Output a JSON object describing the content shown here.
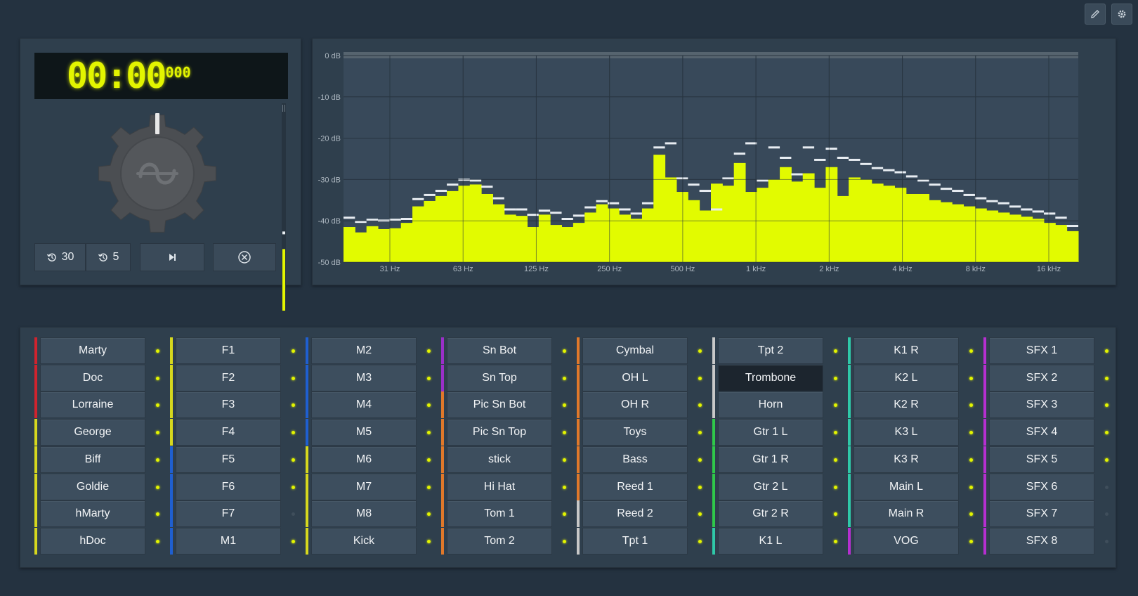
{
  "toolbar": {
    "edit_icon": "pencil-icon",
    "settings_icon": "gear-icon"
  },
  "colors": {
    "accent": "#e3f500",
    "background": "#243240",
    "panel": "#2f3f4d",
    "button": "#3d4e5e"
  },
  "transport": {
    "time_main": "00:00",
    "time_fraction": "000",
    "meter_level": 0.45,
    "buttons": [
      {
        "icon": "rewind-clock-icon",
        "label": "30"
      },
      {
        "icon": "rewind-clock-icon",
        "label": "5"
      },
      {
        "icon": "play-next-icon",
        "label": ""
      },
      {
        "icon": "stop-circle-x-icon",
        "label": ""
      }
    ]
  },
  "chart_data": {
    "type": "bar",
    "title": "",
    "ylabel": "",
    "xlabel": "",
    "ylim": [
      -50,
      0
    ],
    "y_ticks": [
      "0 dB",
      "-10 dB",
      "-20 dB",
      "-30 dB",
      "-40 dB",
      "-50 dB"
    ],
    "x_ticks": [
      "31 Hz",
      "63 Hz",
      "125 Hz",
      "250 Hz",
      "500 Hz",
      "1 kHz",
      "2 kHz",
      "4 kHz",
      "8 kHz",
      "16 kHz"
    ],
    "x_scale": "log",
    "values": [
      -41.5,
      -42.8,
      -41.3,
      -42.0,
      -41.8,
      -40.5,
      -36.5,
      -35.2,
      -34.0,
      -32.8,
      -31.5,
      -31.2,
      -33.5,
      -36.0,
      -38.5,
      -38.8,
      -41.5,
      -38.5,
      -41.0,
      -41.5,
      -40.5,
      -38.0,
      -36.0,
      -37.0,
      -38.5,
      -39.5,
      -37.0,
      -24.0,
      -29.5,
      -33.0,
      -35.0,
      -37.5,
      -31.0,
      -31.5,
      -26.0,
      -33.0,
      -32.0,
      -30.0,
      -27.0,
      -30.5,
      -28.5,
      -32.0,
      -27.0,
      -34.0,
      -29.5,
      -30.0,
      -31.0,
      -31.5,
      -32.0,
      -33.5,
      -33.5,
      -35.0,
      -35.5,
      -36.0,
      -36.5,
      -37.0,
      -37.5,
      -38.0,
      -38.5,
      -39.0,
      -39.5,
      -40.5,
      -41.0,
      -42.5
    ],
    "peaks": [
      -39.5,
      -40.5,
      -40.0,
      -40.2,
      -40.0,
      -39.8,
      -35.0,
      -34.0,
      -33.0,
      -31.5,
      -30.3,
      -30.5,
      -32.0,
      -34.8,
      -37.5,
      -37.5,
      -38.8,
      -37.8,
      -38.3,
      -39.8,
      -39.0,
      -37.0,
      -35.5,
      -36.0,
      -37.5,
      -38.5,
      -36.0,
      -22.5,
      -21.5,
      -30.0,
      -31.5,
      -33.0,
      -37.5,
      -30.0,
      -24.0,
      -21.5,
      -30.5,
      -22.5,
      -25.0,
      -29.0,
      -22.5,
      -25.5,
      -22.8,
      -25.0,
      -25.5,
      -26.5,
      -27.5,
      -28.0,
      -28.5,
      -29.5,
      -30.5,
      -31.5,
      -32.5,
      -33.0,
      -34.0,
      -34.8,
      -35.5,
      -36.0,
      -36.8,
      -37.5,
      -38.0,
      -38.5,
      -39.5,
      -41.5
    ]
  },
  "channel_columns": [
    {
      "items": [
        {
          "label": "Marty",
          "color": "#d0232e",
          "active": true
        },
        {
          "label": "Doc",
          "color": "#d0232e",
          "active": true
        },
        {
          "label": "Lorraine",
          "color": "#d0232e",
          "active": true
        },
        {
          "label": "George",
          "color": "#d6d81e",
          "active": true
        },
        {
          "label": "Biff",
          "color": "#d6d81e",
          "active": true
        },
        {
          "label": "Goldie",
          "color": "#d6d81e",
          "active": true
        },
        {
          "label": "hMarty",
          "color": "#d6d81e",
          "active": true
        },
        {
          "label": "hDoc",
          "color": "#d6d81e",
          "active": true
        }
      ]
    },
    {
      "items": [
        {
          "label": "F1",
          "color": "#d6d81e",
          "active": true
        },
        {
          "label": "F2",
          "color": "#d6d81e",
          "active": true
        },
        {
          "label": "F3",
          "color": "#d6d81e",
          "active": true
        },
        {
          "label": "F4",
          "color": "#d6d81e",
          "active": true
        },
        {
          "label": "F5",
          "color": "#1f5fd0",
          "active": true
        },
        {
          "label": "F6",
          "color": "#1f5fd0",
          "active": true
        },
        {
          "label": "F7",
          "color": "#1f5fd0",
          "active": false
        },
        {
          "label": "M1",
          "color": "#1f5fd0",
          "active": true
        }
      ]
    },
    {
      "items": [
        {
          "label": "M2",
          "color": "#1f5fd0",
          "active": true
        },
        {
          "label": "M3",
          "color": "#1f5fd0",
          "active": true
        },
        {
          "label": "M4",
          "color": "#1f5fd0",
          "active": true
        },
        {
          "label": "M5",
          "color": "#1f5fd0",
          "active": true
        },
        {
          "label": "M6",
          "color": "#d6d81e",
          "active": true
        },
        {
          "label": "M7",
          "color": "#d6d81e",
          "active": true
        },
        {
          "label": "M8",
          "color": "#d6d81e",
          "active": true
        },
        {
          "label": "Kick",
          "color": "#d6d81e",
          "active": true
        }
      ]
    },
    {
      "items": [
        {
          "label": "Sn Bot",
          "color": "#9a2fc8",
          "active": true
        },
        {
          "label": "Sn Top",
          "color": "#9a2fc8",
          "active": true
        },
        {
          "label": "Pic Sn Bot",
          "color": "#e0782a",
          "active": true
        },
        {
          "label": "Pic Sn Top",
          "color": "#e0782a",
          "active": true
        },
        {
          "label": "stick",
          "color": "#e0782a",
          "active": true
        },
        {
          "label": "Hi Hat",
          "color": "#e0782a",
          "active": true
        },
        {
          "label": "Tom 1",
          "color": "#e0782a",
          "active": true
        },
        {
          "label": "Tom 2",
          "color": "#e0782a",
          "active": true
        }
      ]
    },
    {
      "items": [
        {
          "label": "Cymbal",
          "color": "#e0782a",
          "active": true
        },
        {
          "label": "OH L",
          "color": "#e0782a",
          "active": true
        },
        {
          "label": "OH R",
          "color": "#e0782a",
          "active": true
        },
        {
          "label": "Toys",
          "color": "#e0782a",
          "active": true
        },
        {
          "label": "Bass",
          "color": "#e0782a",
          "active": true
        },
        {
          "label": "Reed 1",
          "color": "#e0782a",
          "active": true
        },
        {
          "label": "Reed 2",
          "color": "#c8c8c8",
          "active": true
        },
        {
          "label": "Tpt 1",
          "color": "#c8c8c8",
          "active": true
        }
      ]
    },
    {
      "items": [
        {
          "label": "Tpt 2",
          "color": "#c8c8c8",
          "active": true
        },
        {
          "label": "Trombone",
          "color": "#c8c8c8",
          "active": true,
          "selected": true
        },
        {
          "label": "Horn",
          "color": "#c8c8c8",
          "active": true
        },
        {
          "label": "Gtr 1 L",
          "color": "#2fc84a",
          "active": true
        },
        {
          "label": "Gtr 1 R",
          "color": "#2fc84a",
          "active": true
        },
        {
          "label": "Gtr 2 L",
          "color": "#2fc84a",
          "active": true
        },
        {
          "label": "Gtr 2 R",
          "color": "#2fc84a",
          "active": true
        },
        {
          "label": "K1 L",
          "color": "#2fc8a8",
          "active": true
        }
      ]
    },
    {
      "items": [
        {
          "label": "K1 R",
          "color": "#2fc8a8",
          "active": true
        },
        {
          "label": "K2 L",
          "color": "#2fc8a8",
          "active": true
        },
        {
          "label": "K2 R",
          "color": "#2fc8a8",
          "active": true
        },
        {
          "label": "K3 L",
          "color": "#2fc8a8",
          "active": true
        },
        {
          "label": "K3 R",
          "color": "#2fc8a8",
          "active": true
        },
        {
          "label": "Main L",
          "color": "#2fc8a8",
          "active": true
        },
        {
          "label": "Main R",
          "color": "#2fc8a8",
          "active": true
        },
        {
          "label": "VOG",
          "color": "#b62fd0",
          "active": true
        }
      ]
    },
    {
      "items": [
        {
          "label": "SFX 1",
          "color": "#b62fd0",
          "active": true
        },
        {
          "label": "SFX 2",
          "color": "#b62fd0",
          "active": true
        },
        {
          "label": "SFX 3",
          "color": "#b62fd0",
          "active": true
        },
        {
          "label": "SFX 4",
          "color": "#b62fd0",
          "active": true
        },
        {
          "label": "SFX 5",
          "color": "#b62fd0",
          "active": true
        },
        {
          "label": "SFX 6",
          "color": "#b62fd0",
          "active": false
        },
        {
          "label": "SFX 7",
          "color": "#b62fd0",
          "active": false
        },
        {
          "label": "SFX 8",
          "color": "#b62fd0",
          "active": false
        }
      ]
    }
  ]
}
